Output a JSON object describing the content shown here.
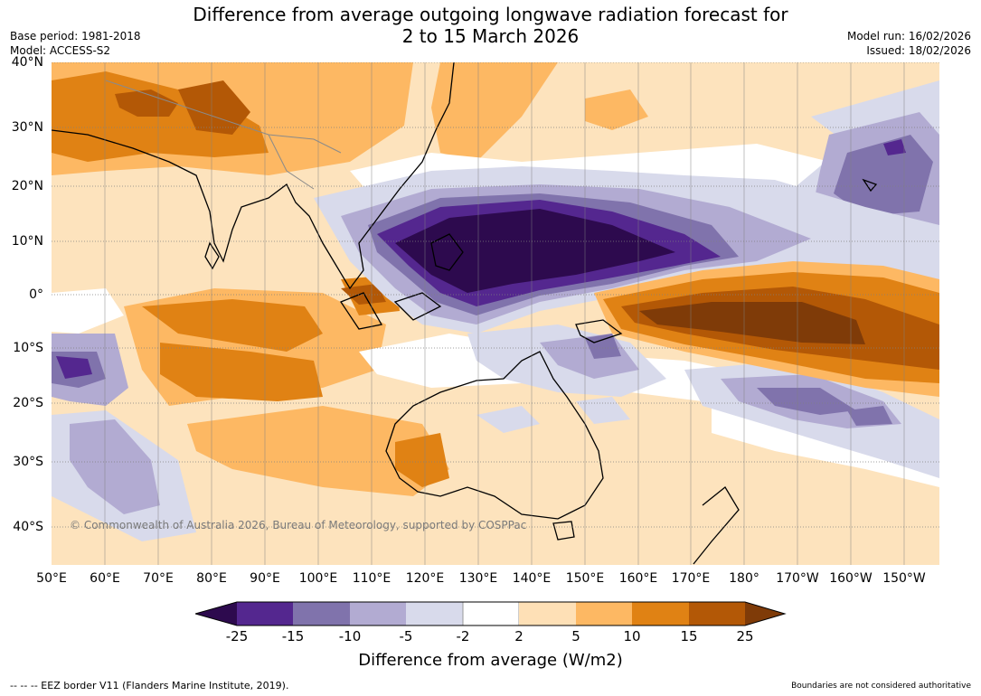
{
  "title_line1": "Difference from average outgoing longwave radiation forecast for",
  "title_line2": "2 to 15 March 2026",
  "base_period": "Base period: 1981-2018",
  "model": "Model: ACCESS-S2",
  "model_run": "Model run: 16/02/2026",
  "issued": "Issued: 18/02/2026",
  "latitude_labels": [
    "40°N",
    "30°N",
    "20°N",
    "10°N",
    "0°",
    "10°S",
    "20°S",
    "30°S",
    "40°S"
  ],
  "longitude_labels": [
    "50°E",
    "60°E",
    "70°E",
    "80°E",
    "90°E",
    "100°E",
    "110°E",
    "120°E",
    "130°E",
    "140°E",
    "150°E",
    "160°E",
    "170°E",
    "180°",
    "170°W",
    "160°W",
    "150°W"
  ],
  "copyright": "© Commonwealth of Australia 2026, Bureau of Meteorology, supported by COSPPac",
  "colorbar": {
    "title": "Difference from average (W/m2)",
    "tick_labels": [
      "-25",
      "-15",
      "-10",
      "-5",
      "-2",
      "2",
      "5",
      "10",
      "15",
      "25"
    ],
    "colors": [
      "#2d0a4e",
      "#54278f",
      "#8073ac",
      "#b2abd2",
      "#d8daeb",
      "#ffffff",
      "#fee0b6",
      "#fdb863",
      "#e08214",
      "#b35806",
      "#7f3b08"
    ]
  },
  "footer_left": "--  --  -- EEZ border V11 (Flanders Marine Institute, 2019).",
  "footer_right": "Boundaries are not considered authoritative"
}
